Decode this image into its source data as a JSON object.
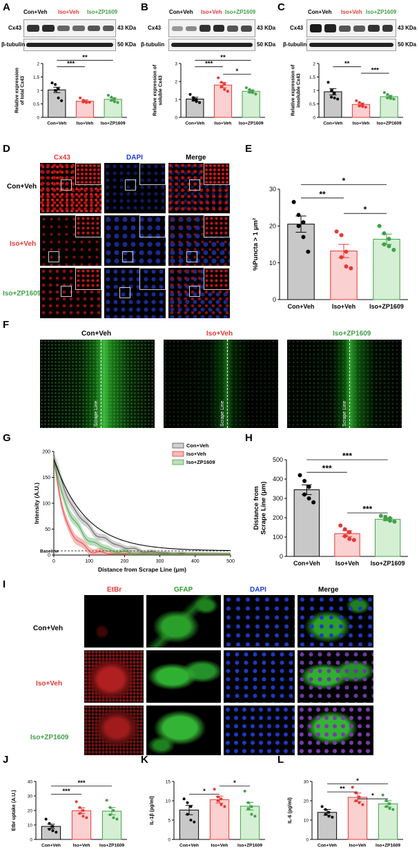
{
  "panels": {
    "A": "A",
    "B": "B",
    "C": "C",
    "D": "D",
    "E": "E",
    "F": "F",
    "G": "G",
    "H": "H",
    "I": "I",
    "J": "J",
    "K": "K",
    "L": "L"
  },
  "groups": [
    "Con+Veh",
    "Iso+Veh",
    "Iso+ZP1609"
  ],
  "group_colors": [
    "#000000",
    "#e53935",
    "#43a047"
  ],
  "blot": {
    "cx43": "Cx43",
    "tubulin": "β-tubulin",
    "kda43": "43 KDa",
    "kda50": "50 KDa"
  },
  "sig": {
    "three": "***",
    "two": "**",
    "one": "*"
  },
  "micro_D": {
    "cols": [
      "Cx43",
      "DAPI",
      "Merge"
    ],
    "col_colors": [
      "#e53935",
      "#1e3cd8",
      "#000000"
    ]
  },
  "micro_F": {
    "scrape": "Scrape Line"
  },
  "micro_I": {
    "cols": [
      "EtBr",
      "GFAP",
      "DAPI",
      "Merge"
    ],
    "col_colors": [
      "#e53935",
      "#2e9e2e",
      "#1e3cd8",
      "#000000"
    ]
  },
  "chart_data": [
    {
      "panel": "A",
      "type": "bar",
      "categories": [
        "Con+Veh",
        "Iso+Veh",
        "Iso+ZP1609"
      ],
      "values": [
        1.02,
        0.6,
        0.67
      ],
      "errors": [
        0.1,
        0.05,
        0.06
      ],
      "points": [
        [
          1.28,
          1.22,
          1.05,
          1.0,
          0.72,
          0.62
        ],
        [
          0.72,
          0.63,
          0.58,
          0.57,
          0.55,
          0.56
        ],
        [
          0.82,
          0.75,
          0.68,
          0.63,
          0.58,
          0.55
        ]
      ],
      "ylabel": "Relative expression of total Cx43",
      "ylim": [
        0,
        2.0
      ],
      "yticks": [
        0,
        0.5,
        1.0,
        1.5,
        2.0
      ],
      "sig": [
        {
          "from": 0,
          "to": 1,
          "label": "***"
        },
        {
          "from": 0,
          "to": 2,
          "label": "**"
        }
      ]
    },
    {
      "panel": "B",
      "type": "bar",
      "categories": [
        "Con+Veh",
        "Iso+Veh",
        "Iso+ZP1609"
      ],
      "values": [
        1.02,
        1.8,
        1.45
      ],
      "errors": [
        0.1,
        0.15,
        0.08
      ],
      "points": [
        [
          1.28,
          1.1,
          1.0,
          0.95,
          0.88,
          0.82
        ],
        [
          2.2,
          1.95,
          1.85,
          1.7,
          1.55,
          1.45
        ],
        [
          1.65,
          1.55,
          1.48,
          1.4,
          1.38,
          1.3
        ]
      ],
      "ylabel": "Relative expression of soluble Cx43",
      "ylim": [
        0,
        3
      ],
      "yticks": [
        0,
        1,
        2,
        3
      ],
      "sig": [
        {
          "from": 0,
          "to": 1,
          "label": "***"
        },
        {
          "from": 0,
          "to": 2,
          "label": "**"
        },
        {
          "from": 1,
          "to": 2,
          "label": "*"
        }
      ]
    },
    {
      "panel": "C",
      "type": "bar",
      "categories": [
        "Con+Veh",
        "Iso+Veh",
        "Iso+ZP1609"
      ],
      "values": [
        0.95,
        0.48,
        0.77
      ],
      "errors": [
        0.12,
        0.05,
        0.05
      ],
      "points": [
        [
          1.3,
          1.0,
          0.9,
          0.75,
          0.72,
          0.68
        ],
        [
          0.62,
          0.55,
          0.48,
          0.42,
          0.4,
          0.38
        ],
        [
          0.92,
          0.85,
          0.78,
          0.72,
          0.7,
          0.68
        ]
      ],
      "ylabel": "Relative expression of insoluble Cx43",
      "ylim": [
        0,
        2.0
      ],
      "yticks": [
        0,
        0.5,
        1.0,
        1.5,
        2.0
      ],
      "sig": [
        {
          "from": 0,
          "to": 1,
          "label": "**"
        },
        {
          "from": 1,
          "to": 2,
          "label": "***"
        }
      ]
    },
    {
      "panel": "E",
      "type": "bar",
      "categories": [
        "Con+Veh",
        "Iso+Veh",
        "Iso+ZP1609"
      ],
      "values": [
        20.5,
        13.2,
        16.4
      ],
      "errors": [
        2.2,
        1.8,
        1.4
      ],
      "points": [
        [
          26.5,
          23.0,
          21.0,
          20.0,
          17.0,
          13.0
        ],
        [
          18.5,
          17.5,
          13.0,
          11.5,
          9.0,
          8.5
        ],
        [
          20.0,
          18.0,
          16.5,
          15.0,
          14.5,
          13.5
        ]
      ],
      "ylabel": "%Puncta > 1 μm²",
      "ylim": [
        0,
        30
      ],
      "yticks": [
        0,
        10,
        20,
        30
      ],
      "sig": [
        {
          "from": 0,
          "to": 1,
          "label": "**"
        },
        {
          "from": 0,
          "to": 2,
          "label": "*"
        },
        {
          "from": 1,
          "to": 2,
          "label": "*"
        }
      ]
    },
    {
      "panel": "G",
      "type": "line",
      "xlabel": "Distance from Scrape Line (μm)",
      "ylabel": "Intensity (A.U.)",
      "xlim": [
        0,
        500
      ],
      "ylim": [
        0,
        200
      ],
      "xticks": [
        0,
        100,
        200,
        300,
        400,
        500
      ],
      "yticks": [
        0,
        50,
        100,
        150,
        200
      ],
      "baseline": "Baseline",
      "series": [
        {
          "name": "Con+Veh",
          "color": "#555555",
          "y0": 185,
          "decay": 80
        },
        {
          "name": "Iso+Veh",
          "color": "#e53935",
          "y0": 185,
          "decay": 35
        },
        {
          "name": "Iso+ZP1609",
          "color": "#43a047",
          "y0": 185,
          "decay": 55
        }
      ]
    },
    {
      "panel": "H",
      "type": "bar",
      "categories": [
        "Con+Veh",
        "Iso+Veh",
        "Iso+ZP1609"
      ],
      "values": [
        345,
        118,
        192
      ],
      "errors": [
        25,
        15,
        7
      ],
      "points": [
        [
          420,
          390,
          360,
          320,
          300,
          280
        ],
        [
          160,
          140,
          125,
          105,
          90,
          85
        ],
        [
          210,
          205,
          198,
          192,
          185,
          180
        ]
      ],
      "ylabel": "Distance from Scrape Line (μm)",
      "ylim": [
        0,
        500
      ],
      "yticks": [
        0,
        100,
        200,
        300,
        400,
        500
      ],
      "sig": [
        {
          "from": 0,
          "to": 1,
          "label": "***"
        },
        {
          "from": 0,
          "to": 2,
          "label": "***"
        },
        {
          "from": 1,
          "to": 2,
          "label": "***"
        }
      ]
    },
    {
      "panel": "J",
      "type": "bar",
      "categories": [
        "Con+Veh",
        "Iso+Veh",
        "Iso+ZP1609"
      ],
      "values": [
        9.0,
        19.8,
        19.5
      ],
      "errors": [
        1.5,
        2.0,
        2.5
      ],
      "points": [
        [
          14,
          11,
          9,
          7,
          6,
          5
        ],
        [
          26,
          22,
          20,
          18,
          16,
          15
        ],
        [
          27,
          22,
          20,
          17,
          15,
          14
        ]
      ],
      "ylabel": "Etbr uptake (A.U.)",
      "ylim": [
        0,
        40
      ],
      "yticks": [
        0,
        10,
        20,
        30,
        40
      ],
      "sig": [
        {
          "from": 0,
          "to": 1,
          "label": "***"
        },
        {
          "from": 0,
          "to": 2,
          "label": "***"
        }
      ]
    },
    {
      "panel": "K",
      "type": "bar",
      "categories": [
        "Con+Veh",
        "Iso+Veh",
        "Iso+ZP1609"
      ],
      "values": [
        7.6,
        10.3,
        8.6
      ],
      "errors": [
        1.2,
        0.9,
        1.0
      ],
      "points": [
        [
          10.5,
          9.5,
          8.5,
          6.5,
          5.0,
          4.5
        ],
        [
          13.0,
          11.0,
          10.5,
          10.0,
          9.0,
          8.5
        ],
        [
          12.5,
          9.5,
          8.5,
          8.0,
          6.5,
          6.0
        ]
      ],
      "ylabel": "IL-1β (pg/ml)",
      "ylim": [
        0,
        15
      ],
      "yticks": [
        0,
        5,
        10,
        15
      ],
      "sig": [
        {
          "from": 0,
          "to": 1,
          "label": "*"
        },
        {
          "from": 1,
          "to": 2,
          "label": "*"
        }
      ]
    },
    {
      "panel": "L",
      "type": "bar",
      "categories": [
        "Con+Veh",
        "Iso+Veh",
        "Iso+ZP1609"
      ],
      "values": [
        14.0,
        21.8,
        18.4
      ],
      "errors": [
        1.5,
        2.2,
        1.6
      ],
      "points": [
        [
          17.0,
          15.5,
          14.0,
          13.0,
          12.0,
          11.5
        ],
        [
          27.0,
          24.0,
          22.0,
          20.0,
          19.0,
          18.0
        ],
        [
          23.0,
          20.0,
          18.5,
          17.0,
          16.0,
          15.5
        ]
      ],
      "ylabel": "IL-6 (pg/ml)",
      "ylim": [
        0,
        30
      ],
      "yticks": [
        0,
        10,
        20,
        30
      ],
      "sig": [
        {
          "from": 0,
          "to": 1,
          "label": "**"
        },
        {
          "from": 0,
          "to": 2,
          "label": "*"
        },
        {
          "from": 1,
          "to": 2,
          "label": "*"
        }
      ]
    }
  ]
}
